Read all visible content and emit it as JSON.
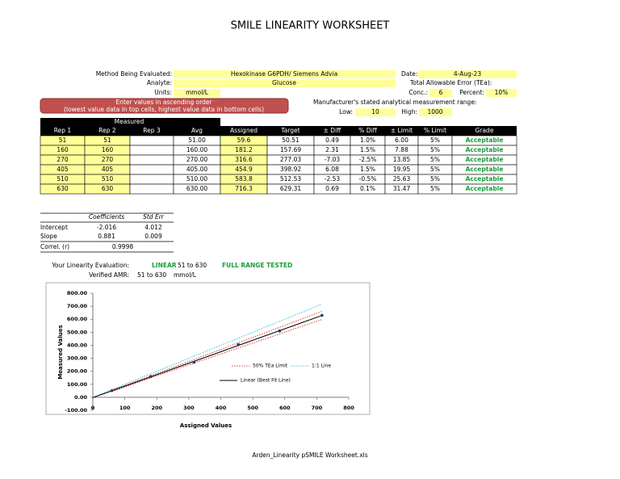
{
  "header": {
    "title": "SMILE LINEARITY WORKSHEET"
  },
  "form": {
    "method_label": "Method Being Evaluated:",
    "method": "Hexokinase G6PDH/ Siemens Advia",
    "analyte_label": "Analyte:",
    "analyte": "Glucose",
    "units_label": "Units:",
    "units": "mmol/L",
    "date_label": "Date:",
    "date": "4-Aug-23",
    "tea_label": "Total Allowable Error (TEa):",
    "conc_label": "Conc.:",
    "conc": "6",
    "percent_label": "Percent:",
    "percent": "10%",
    "notice": [
      "Enter values in ascending order",
      "(lowest value data in top cells, highest value data in bottom cells)"
    ],
    "range_label": "Manufacturer's stated analytical measurement range:",
    "low_label": "Low:",
    "low": "10",
    "high_label": "High:",
    "high": "1000"
  },
  "table": {
    "group": "Measured",
    "columns": [
      "Rep 1",
      "Rep 2",
      "Rep 3",
      "Avg",
      "Assigned",
      "Target",
      "± Diff",
      "% Diff",
      "± Limit",
      "% Limit",
      "Grade"
    ],
    "rows": [
      [
        "51",
        "51",
        null,
        "51.00",
        "59.6",
        "50.51",
        "0.49",
        "1.0%",
        "6.00",
        "5%",
        "Acceptable"
      ],
      [
        "160",
        "160",
        null,
        "160.00",
        "181.2",
        "157.69",
        "2.31",
        "1.5%",
        "7.88",
        "5%",
        "Acceptable"
      ],
      [
        "270",
        "270",
        null,
        "270.00",
        "316.6",
        "277.03",
        "-7.03",
        "-2.5%",
        "13.85",
        "5%",
        "Acceptable"
      ],
      [
        "405",
        "405",
        null,
        "405.00",
        "454.9",
        "398.92",
        "6.08",
        "1.5%",
        "19.95",
        "5%",
        "Acceptable"
      ],
      [
        "510",
        "510",
        null,
        "510.00",
        "583.8",
        "512.53",
        "-2.53",
        "-0.5%",
        "25.63",
        "5%",
        "Acceptable"
      ],
      [
        "630",
        "630",
        null,
        "630.00",
        "716.3",
        "629.31",
        "0.69",
        "0.1%",
        "31.47",
        "5%",
        "Acceptable"
      ]
    ]
  },
  "stats": {
    "headers": [
      "Coefficients",
      "Std Err"
    ],
    "rows": [
      {
        "label": "Intercept",
        "values": [
          "-2.016",
          "4.012"
        ]
      },
      {
        "label": "Slope",
        "values": [
          "0.881",
          "0.009"
        ]
      }
    ],
    "correl": {
      "label": "Correl. (r)",
      "value": "0.9998"
    }
  },
  "evaluation": {
    "label": "Your Linearity Evaluation:",
    "result": "LINEAR",
    "range": "51 to 630",
    "note": "FULL RANGE TESTED",
    "amr_label": "Verified AMR:",
    "amr": "51 to 630",
    "amr_units": "mmol/L"
  },
  "footer": {
    "filename": "Arden_Linearity pSMILE Worksheet.xls"
  },
  "chart_data": {
    "type": "scatter",
    "xlabel": "Assigned Values",
    "ylabel": "Measured Values",
    "xlim": [
      0,
      800
    ],
    "ylim": [
      -100,
      800
    ],
    "xticks": [
      0,
      100,
      200,
      300,
      400,
      500,
      600,
      700,
      800
    ],
    "yticks": [
      {
        "value": -100,
        "label": "-100.00"
      },
      {
        "value": 0,
        "label": "0.00"
      },
      {
        "value": 100,
        "label": "100.00"
      },
      {
        "value": 200,
        "label": "200.00"
      },
      {
        "value": 300,
        "label": "300.00"
      },
      {
        "value": 400,
        "label": "400.00"
      },
      {
        "value": 500,
        "label": "500.00"
      },
      {
        "value": 600,
        "label": "600.00"
      },
      {
        "value": 700,
        "label": "700.00"
      },
      {
        "value": 800,
        "label": "800.00"
      }
    ],
    "legend": [
      {
        "name": "50% TEa Limit",
        "color": "#e0403a"
      },
      {
        "name": "1:1 Line",
        "color": "#33c3dd"
      },
      {
        "name": "Linear (Best Fit Line)",
        "color": "#000000"
      }
    ],
    "marker_color": "#1f3b70"
  }
}
